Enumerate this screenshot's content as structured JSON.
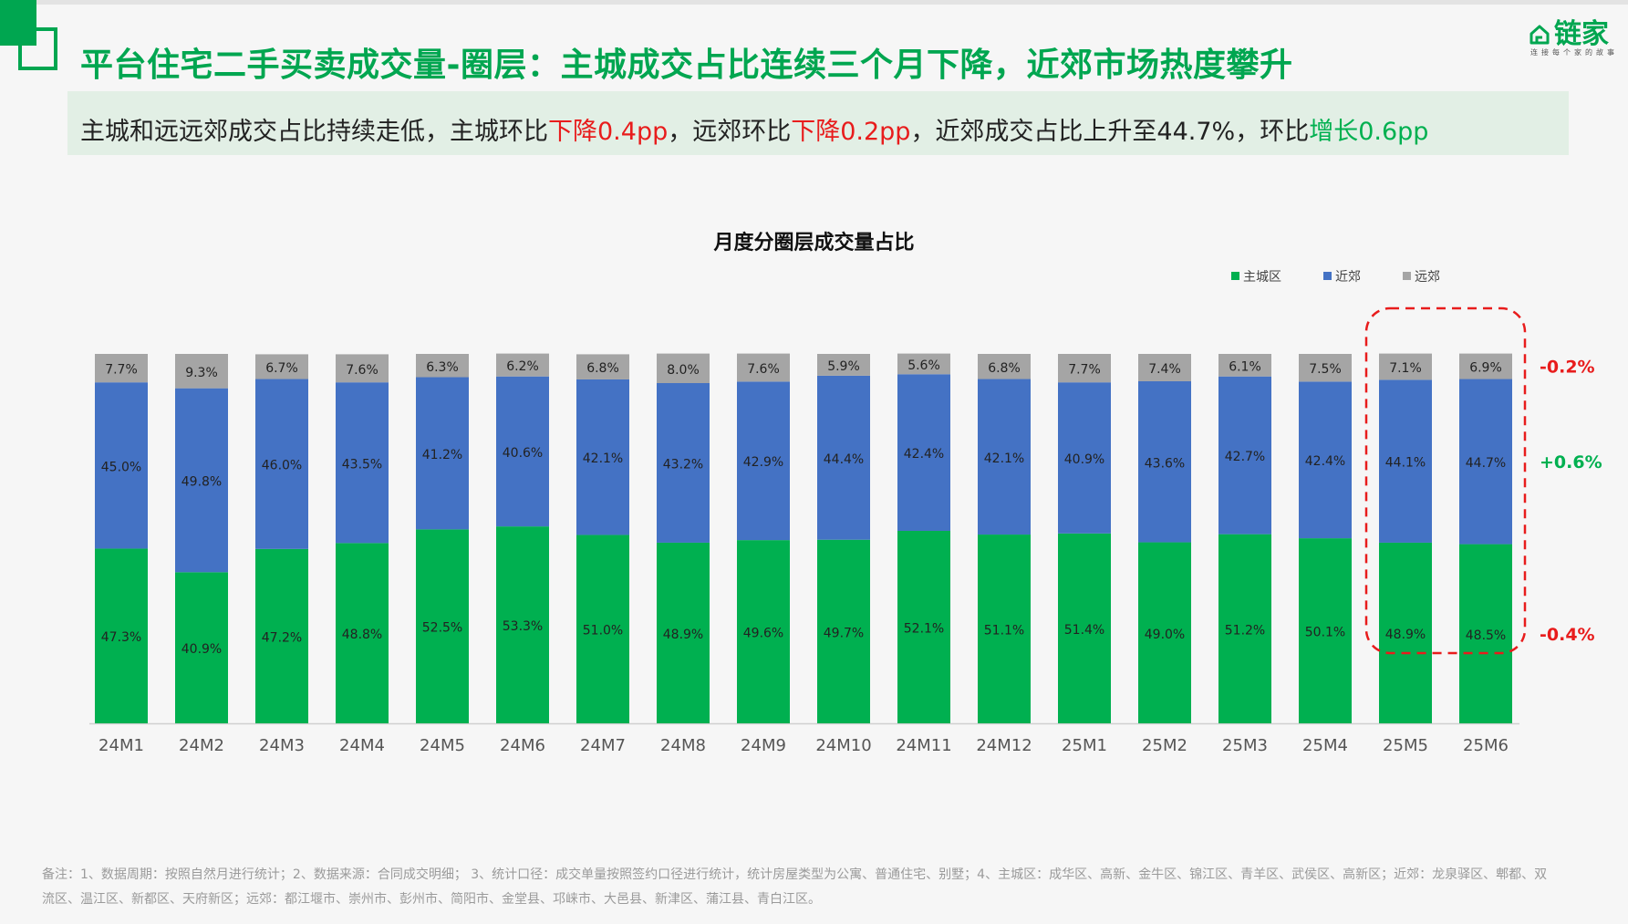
{
  "header": {
    "title": "平台住宅二手买卖成交量-圈层：主城成交占比连续三个月下降，近郊市场热度攀升",
    "logo_text": "链家",
    "logo_sub": "连接每个家的故事"
  },
  "subtitle": {
    "part1": "主城和远远郊成交占比持续走低，主城环比",
    "red1": "下降0.4pp",
    "part2": "，远郊环比",
    "red2": "下降0.2pp",
    "part3": "，近郊成交占比上升至44.7%，环比",
    "green1": "增长0.6pp"
  },
  "chart_title": "月度分圈层成交量占比",
  "chart_data": {
    "type": "bar",
    "stacked": true,
    "title": "月度分圈层成交量占比",
    "categories": [
      "24M1",
      "24M2",
      "24M3",
      "24M4",
      "24M5",
      "24M6",
      "24M7",
      "24M8",
      "24M9",
      "24M10",
      "24M11",
      "24M12",
      "25M1",
      "25M2",
      "25M3",
      "25M4",
      "25M5",
      "25M6"
    ],
    "series": [
      {
        "name": "主城区",
        "color": "#00b050",
        "values": [
          47.3,
          40.9,
          47.2,
          48.8,
          52.5,
          53.3,
          51.0,
          48.9,
          49.6,
          49.7,
          52.1,
          51.1,
          51.4,
          49.0,
          51.2,
          50.1,
          48.9,
          48.5
        ]
      },
      {
        "name": "近郊",
        "color": "#4472c4",
        "values": [
          45.0,
          49.8,
          46.0,
          43.5,
          41.2,
          40.6,
          42.1,
          43.2,
          42.9,
          44.4,
          42.4,
          42.1,
          40.9,
          43.6,
          42.7,
          42.4,
          44.1,
          44.7
        ]
      },
      {
        "name": "远郊",
        "color": "#a5a5a5",
        "values": [
          7.7,
          9.3,
          6.7,
          7.6,
          6.3,
          6.2,
          6.8,
          8.0,
          7.6,
          5.9,
          5.6,
          6.8,
          7.7,
          7.4,
          6.1,
          7.5,
          7.1,
          6.9
        ]
      }
    ],
    "value_suffix": "%",
    "ylim": [
      0,
      100
    ],
    "legend_position": "top-right",
    "highlight_categories": [
      "25M5",
      "25M6"
    ],
    "annotations": [
      {
        "series": "远郊",
        "text": "-0.2%",
        "color": "#e81c1c"
      },
      {
        "series": "近郊",
        "text": "+0.6%",
        "color": "#00b050"
      },
      {
        "series": "主城区",
        "text": "-0.4%",
        "color": "#e81c1c"
      }
    ]
  },
  "footnote": "备注：1、数据周期：按照自然月进行统计；2、数据来源：合同成交明细； 3、统计口径：成交单量按照签约口径进行统计，统计房屋类型为公寓、普通住宅、别墅；4、主城区：成华区、高新、金牛区、锦江区、青羊区、武侯区、高新区；近郊：龙泉驿区、郫都、双流区、温江区、新都区、天府新区；远郊：都江堰市、崇州市、彭州市、简阳市、金堂县、邛崃市、大邑县、新津区、蒲江县、青白江区。"
}
